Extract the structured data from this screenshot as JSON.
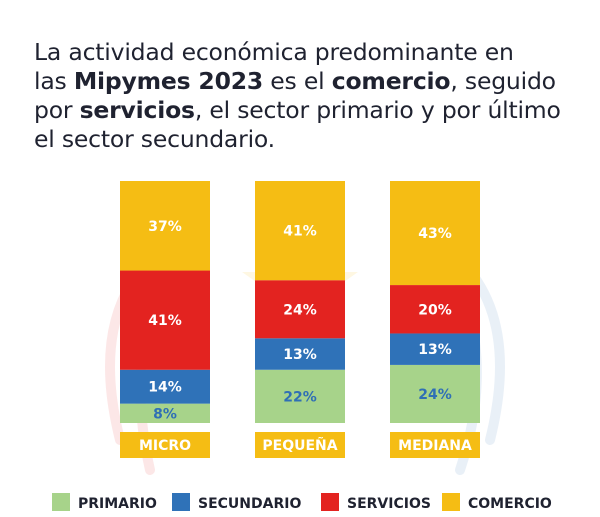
{
  "headline": {
    "t1": "La actividad económica predominante en",
    "t2": "las ",
    "b1": "Mipymes 2023",
    "t3": " es el ",
    "b2": "comercio",
    "t4": ", seguido",
    "t5": "por ",
    "b3": "servicios",
    "t6": ", el sector primario y por último",
    "t7": "el sector secundario."
  },
  "chart_data": {
    "type": "bar",
    "stacked": true,
    "categories": [
      "MICRO",
      "PEQUEÑA",
      "MEDIANA"
    ],
    "series": [
      {
        "name": "PRIMARIO",
        "values": [
          8,
          22,
          24
        ],
        "labels": [
          "8%",
          "22%",
          "24%"
        ],
        "color": "#a7d38a",
        "label_color": "#2f6fb5"
      },
      {
        "name": "SECUNDARIO",
        "values": [
          14,
          13,
          13
        ],
        "labels": [
          "14%",
          "13%",
          "13%"
        ],
        "color": "#2f72b8",
        "label_color": "#ffffff"
      },
      {
        "name": "SERVICIOS",
        "values": [
          41,
          24,
          20
        ],
        "labels": [
          "41%",
          "24%",
          "20%"
        ],
        "color": "#e32320",
        "label_color": "#ffffff"
      },
      {
        "name": "COMERCIO",
        "values": [
          37,
          41,
          43
        ],
        "labels": [
          "37%",
          "41%",
          "43%"
        ],
        "color": "#f5bd14",
        "label_color": "#ffffff"
      }
    ],
    "ylim": [
      0,
      100
    ],
    "legend_position": "bottom"
  }
}
